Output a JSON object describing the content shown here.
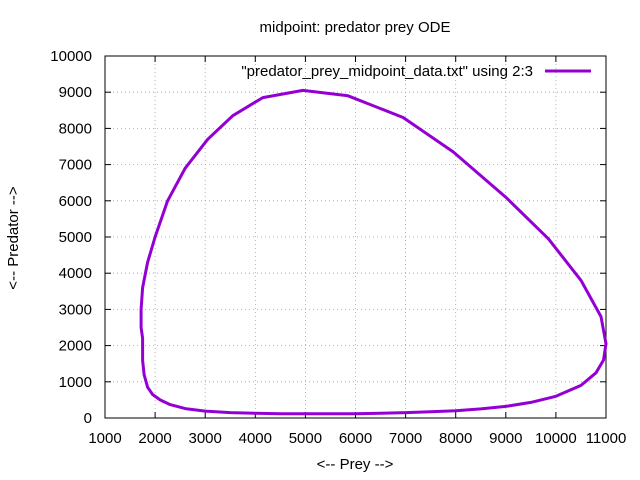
{
  "chart_data": {
    "type": "line",
    "title": "midpoint: predator prey ODE",
    "xlabel": "<-- Prey -->",
    "ylabel": "<-- Predator -->",
    "xlim": [
      1000,
      11000
    ],
    "ylim": [
      0,
      10000
    ],
    "xticks": [
      1000,
      2000,
      3000,
      4000,
      5000,
      6000,
      7000,
      8000,
      9000,
      10000,
      11000
    ],
    "yticks": [
      0,
      1000,
      2000,
      3000,
      4000,
      5000,
      6000,
      7000,
      8000,
      9000,
      10000
    ],
    "xtick_labels": [
      "1000",
      "2000",
      "3000",
      "4000",
      "5000",
      "6000",
      "7000",
      "8000",
      "9000",
      "10000",
      "11000"
    ],
    "ytick_labels": [
      "0",
      "1000",
      "2000",
      "3000",
      "4000",
      "5000",
      "6000",
      "7000",
      "8000",
      "9000",
      "10000"
    ],
    "grid": true,
    "legend_position": "top-right",
    "series": [
      {
        "name": "\"predator_prey_midpoint_data.txt\" using 2:3",
        "color": "#9400d3",
        "x": [
          1750,
          1720,
          1720,
          1750,
          1850,
          2000,
          2250,
          2600,
          3050,
          3550,
          4150,
          4950,
          5850,
          6950,
          7950,
          9000,
          9850,
          10500,
          10900,
          11000,
          10950,
          10800,
          10500,
          10000,
          9500,
          9000,
          8500,
          8000,
          7500,
          7000,
          6500,
          6000,
          5500,
          5000,
          4500,
          4000,
          3500,
          3000,
          2600,
          2300,
          2100,
          1950,
          1850,
          1780,
          1750
        ],
        "y": [
          2200,
          2500,
          3000,
          3600,
          4300,
          5000,
          6000,
          6900,
          7700,
          8350,
          8850,
          9050,
          8900,
          8300,
          7350,
          6100,
          4950,
          3800,
          2800,
          2050,
          1600,
          1250,
          900,
          600,
          430,
          320,
          250,
          200,
          170,
          150,
          130,
          120,
          115,
          115,
          120,
          130,
          150,
          190,
          260,
          370,
          500,
          650,
          850,
          1200,
          1600
        ]
      }
    ]
  }
}
